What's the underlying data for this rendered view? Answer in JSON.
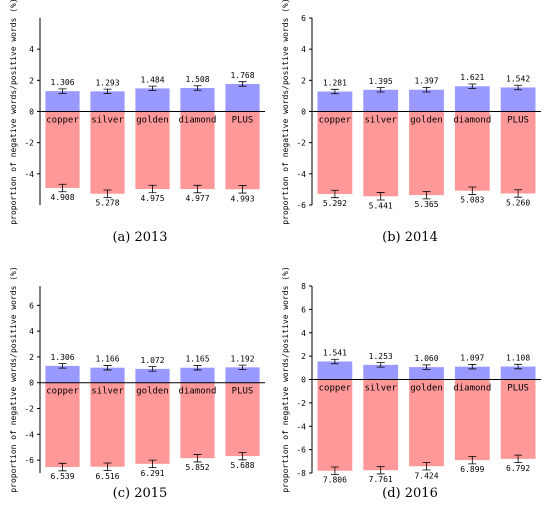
{
  "figure": {
    "ylabel": "proportion of negative words/positive words (%)",
    "categories": [
      "copper",
      "silver",
      "golden",
      "diamond",
      "PLUS"
    ],
    "colors": {
      "positive": "#9999ff",
      "negative": "#ff9999",
      "errorbar": "#000000",
      "axis": "#000000"
    }
  },
  "chart_data": [
    {
      "type": "bar",
      "caption": "(a) 2013",
      "categories": [
        "copper",
        "silver",
        "golden",
        "diamond",
        "PLUS"
      ],
      "ylim": [
        -6,
        6
      ],
      "yticks": [
        -4,
        -2,
        0,
        2,
        4
      ],
      "series": [
        {
          "values": [
            1.306,
            1.293,
            1.484,
            1.508,
            1.768
          ],
          "labels": [
            "1.306",
            "1.293",
            "1.484",
            "1.508",
            "1.768"
          ]
        },
        {
          "values": [
            -4.908,
            -5.278,
            -4.975,
            -4.977,
            -4.993
          ],
          "labels": [
            "4.908",
            "5.278",
            "4.975",
            "4.977",
            "4.993"
          ]
        }
      ]
    },
    {
      "type": "bar",
      "caption": "(b) 2014",
      "categories": [
        "copper",
        "silver",
        "golden",
        "diamond",
        "PLUS"
      ],
      "ylim": [
        -6,
        6
      ],
      "yticks": [
        -6,
        -4,
        -2,
        0,
        2,
        4,
        6
      ],
      "series": [
        {
          "values": [
            1.281,
            1.395,
            1.397,
            1.621,
            1.542
          ],
          "labels": [
            "1.281",
            "1.395",
            "1.397",
            "1.621",
            "1.542"
          ]
        },
        {
          "values": [
            -5.292,
            -5.441,
            -5.365,
            -5.083,
            -5.26
          ],
          "labels": [
            "5.292",
            "5.441",
            "5.365",
            "5.083",
            "5.260"
          ]
        }
      ]
    },
    {
      "type": "bar",
      "caption": "(c) 2015",
      "categories": [
        "copper",
        "silver",
        "golden",
        "diamond",
        "PLUS"
      ],
      "ylim": [
        -7,
        7.5
      ],
      "yticks": [
        -6,
        -4,
        -2,
        0,
        2,
        4,
        6
      ],
      "series": [
        {
          "values": [
            1.306,
            1.166,
            1.072,
            1.165,
            1.192
          ],
          "labels": [
            "1.306",
            "1.166",
            "1.072",
            "1.165",
            "1.192"
          ]
        },
        {
          "values": [
            -6.539,
            -6.516,
            -6.291,
            -5.852,
            -5.688
          ],
          "labels": [
            "6.539",
            "6.516",
            "6.291",
            "5.852",
            "5.688"
          ]
        }
      ]
    },
    {
      "type": "bar",
      "caption": "(d) 2016",
      "categories": [
        "copper",
        "silver",
        "golden",
        "diamond",
        "PLUS"
      ],
      "ylim": [
        -8,
        8
      ],
      "yticks": [
        -8,
        -6,
        -4,
        -2,
        0,
        2,
        4,
        6,
        8
      ],
      "series": [
        {
          "values": [
            1.541,
            1.253,
            1.06,
            1.097,
            1.108
          ],
          "labels": [
            "1.541",
            "1.253",
            "1.060",
            "1.097",
            "1.108"
          ]
        },
        {
          "values": [
            -7.806,
            -7.761,
            -7.424,
            -6.899,
            -6.792
          ],
          "labels": [
            "7.806",
            "7.761",
            "7.424",
            "6.899",
            "6.792"
          ]
        }
      ]
    }
  ]
}
